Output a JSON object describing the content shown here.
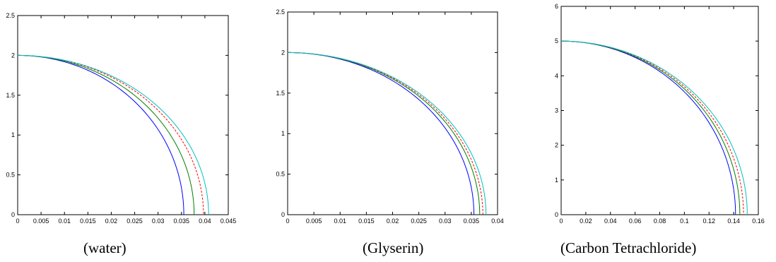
{
  "captions": [
    "(water)",
    "(Glyserin)",
    "(Carbon Tetrachloride)"
  ],
  "colors": {
    "blue": "#0000ff",
    "green": "#008000",
    "red": "#ff0000",
    "cyan": "#00c0c0"
  },
  "chart_data": [
    {
      "type": "line",
      "title": "",
      "xlabel": "",
      "ylabel": "",
      "xlim": [
        0,
        0.045
      ],
      "ylim": [
        0,
        2.5
      ],
      "xticks": [
        "0",
        "0.005",
        "0.01",
        "0.015",
        "0.02",
        "0.025",
        "0.03",
        "0.035",
        "0.04",
        "0.045"
      ],
      "yticks": [
        "0",
        "0.5",
        "1",
        "1.5",
        "2",
        "2.5"
      ],
      "grid": false,
      "series": [
        {
          "color": "#0000ff",
          "style": "solid",
          "y0": 2,
          "x_end": 0.0355
        },
        {
          "color": "#008000",
          "style": "solid",
          "y0": 2,
          "x_end": 0.0377
        },
        {
          "color": "#ff0000",
          "style": "dashed",
          "y0": 2,
          "x_end": 0.0397
        },
        {
          "color": "#00c0c0",
          "style": "solid",
          "y0": 2,
          "x_end": 0.0408
        }
      ]
    },
    {
      "type": "line",
      "title": "",
      "xlabel": "",
      "ylabel": "",
      "xlim": [
        0,
        0.04
      ],
      "ylim": [
        0,
        2.5
      ],
      "xticks": [
        "0",
        "0.005",
        "0.01",
        "0.015",
        "0.02",
        "0.025",
        "0.03",
        "0.035",
        "0.04"
      ],
      "yticks": [
        "0",
        "0.5",
        "1",
        "1.5",
        "2",
        "2.5"
      ],
      "grid": false,
      "series": [
        {
          "color": "#0000ff",
          "style": "solid",
          "y0": 2,
          "x_end": 0.0355
        },
        {
          "color": "#008000",
          "style": "solid",
          "y0": 2,
          "x_end": 0.0366
        },
        {
          "color": "#ff0000",
          "style": "dashed",
          "y0": 2,
          "x_end": 0.0372
        },
        {
          "color": "#00c0c0",
          "style": "solid",
          "y0": 2,
          "x_end": 0.0378
        }
      ]
    },
    {
      "type": "line",
      "title": "",
      "xlabel": "",
      "ylabel": "",
      "xlim": [
        0,
        0.16
      ],
      "ylim": [
        0,
        6
      ],
      "xticks": [
        "0",
        "0.02",
        "0.04",
        "0.06",
        "0.08",
        "0.1",
        "0.12",
        "0.14",
        "0.16"
      ],
      "yticks": [
        "0",
        "1",
        "2",
        "3",
        "4",
        "5",
        "6"
      ],
      "grid": false,
      "series": [
        {
          "color": "#0000ff",
          "style": "solid",
          "y0": 5,
          "x_end": 0.1415
        },
        {
          "color": "#008000",
          "style": "solid",
          "y0": 5,
          "x_end": 0.145
        },
        {
          "color": "#ff0000",
          "style": "dashed",
          "y0": 5,
          "x_end": 0.148
        },
        {
          "color": "#00c0c0",
          "style": "solid",
          "y0": 5,
          "x_end": 0.151
        }
      ]
    }
  ]
}
